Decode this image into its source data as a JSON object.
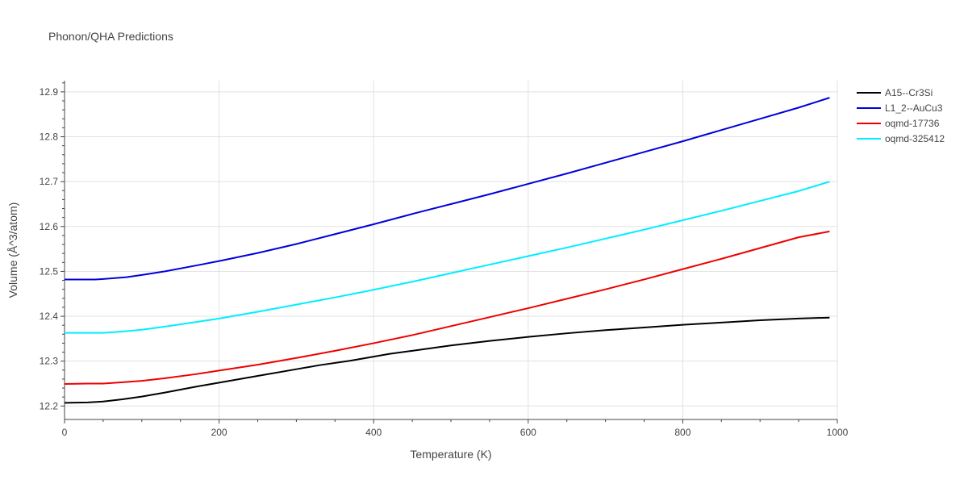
{
  "chart_data": {
    "type": "line",
    "title": "Phonon/QHA Predictions",
    "xlabel": "Temperature (K)",
    "ylabel": "Volume (Å^3/atom)",
    "xlim": [
      0,
      1000
    ],
    "ylim": [
      12.17,
      12.925
    ],
    "xticks": [
      0,
      200,
      400,
      600,
      800,
      1000
    ],
    "yticks": [
      12.2,
      12.3,
      12.4,
      12.5,
      12.6,
      12.7,
      12.8,
      12.9
    ],
    "grid": true,
    "legend_position": "top-right",
    "series": [
      {
        "name": "A15--Cr3Si",
        "color": "#000000",
        "x": [
          0,
          30,
          50,
          75,
          100,
          130,
          170,
          200,
          250,
          300,
          330,
          370,
          400,
          420,
          450,
          500,
          550,
          600,
          650,
          700,
          750,
          800,
          850,
          900,
          950,
          990
        ],
        "y": [
          12.207,
          12.208,
          12.21,
          12.215,
          12.221,
          12.23,
          12.243,
          12.252,
          12.267,
          12.282,
          12.291,
          12.301,
          12.31,
          12.316,
          12.323,
          12.335,
          12.345,
          12.354,
          12.362,
          12.369,
          12.375,
          12.381,
          12.386,
          12.391,
          12.395,
          12.397
        ]
      },
      {
        "name": "L1_2--AuCu3",
        "color": "#0000dd",
        "x": [
          0,
          40,
          50,
          80,
          100,
          130,
          170,
          200,
          250,
          300,
          350,
          400,
          450,
          500,
          550,
          600,
          650,
          700,
          750,
          800,
          850,
          900,
          950,
          990
        ],
        "y": [
          12.482,
          12.482,
          12.483,
          12.487,
          12.492,
          12.5,
          12.513,
          12.523,
          12.541,
          12.561,
          12.583,
          12.605,
          12.628,
          12.65,
          12.672,
          12.695,
          12.718,
          12.742,
          12.766,
          12.79,
          12.815,
          12.84,
          12.865,
          12.887
        ]
      },
      {
        "name": "oqmd-17736",
        "color": "#ee0000",
        "x": [
          0,
          30,
          50,
          75,
          100,
          130,
          170,
          200,
          250,
          300,
          350,
          400,
          450,
          500,
          550,
          600,
          650,
          700,
          750,
          800,
          850,
          900,
          950,
          990
        ],
        "y": [
          12.249,
          12.25,
          12.25,
          12.253,
          12.256,
          12.262,
          12.271,
          12.279,
          12.292,
          12.307,
          12.323,
          12.34,
          12.358,
          12.378,
          12.398,
          12.418,
          12.439,
          12.46,
          12.482,
          12.505,
          12.528,
          12.552,
          12.576,
          12.589
        ]
      },
      {
        "name": "oqmd-325412",
        "color": "#00eeff",
        "x": [
          0,
          30,
          50,
          75,
          100,
          130,
          170,
          200,
          250,
          300,
          350,
          400,
          450,
          500,
          550,
          600,
          650,
          700,
          750,
          800,
          850,
          900,
          950,
          990
        ],
        "y": [
          12.363,
          12.363,
          12.363,
          12.366,
          12.37,
          12.377,
          12.387,
          12.395,
          12.41,
          12.426,
          12.442,
          12.459,
          12.477,
          12.496,
          12.515,
          12.534,
          12.553,
          12.573,
          12.593,
          12.614,
          12.635,
          12.657,
          12.679,
          12.7
        ]
      }
    ]
  }
}
